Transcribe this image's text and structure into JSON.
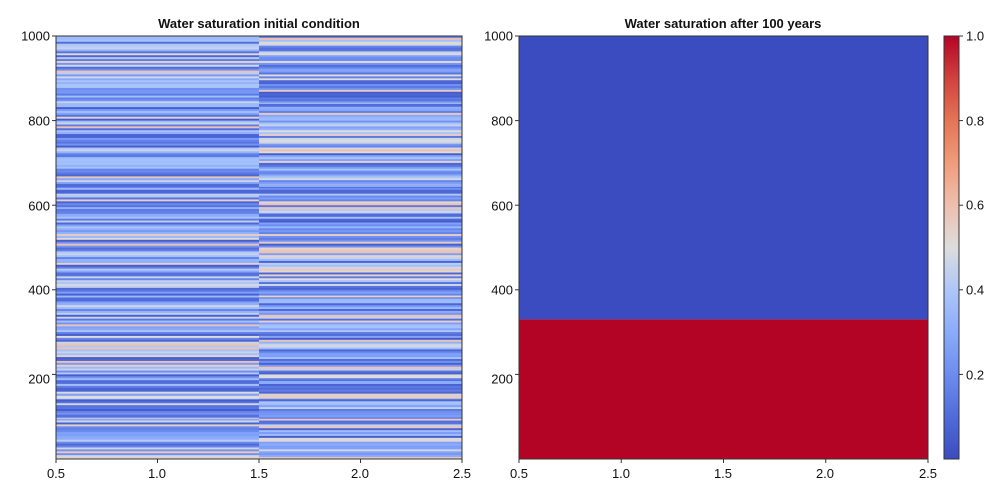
{
  "chart_data": [
    {
      "type": "heatmap",
      "title": "Water saturation initial condition",
      "xlabel": "",
      "ylabel": "",
      "xlim": [
        0.5,
        2.5
      ],
      "ylim": [
        0,
        1000
      ],
      "xticks": [
        "0.5",
        "1.0",
        "1.5",
        "2.0",
        "2.5"
      ],
      "yticks": [
        "200",
        "400",
        "600",
        "800",
        "1000"
      ],
      "columns": 2,
      "description_of_values": "Thin horizontal layers; saturation roughly 0.05–0.6 varying with depth",
      "value_range": [
        0.05,
        0.6
      ],
      "sample_layers": [
        {
          "y": 100,
          "left": 0.12,
          "right": 0.25
        },
        {
          "y": 145,
          "left": 0.5,
          "right": 0.55
        },
        {
          "y": 180,
          "left": 0.1,
          "right": 0.3
        },
        {
          "y": 375,
          "left": 0.1,
          "right": 0.35
        },
        {
          "y": 575,
          "left": 0.3,
          "right": 0.1
        },
        {
          "y": 645,
          "left": 0.1,
          "right": 0.3
        },
        {
          "y": 835,
          "left": 0.35,
          "right": 0.1
        }
      ]
    },
    {
      "type": "heatmap",
      "title": "Water saturation after 100 years",
      "xlabel": "",
      "ylabel": "",
      "xlim": [
        0.5,
        2.5
      ],
      "ylim": [
        0,
        1000
      ],
      "xticks": [
        "0.5",
        "1.0",
        "1.5",
        "2.0",
        "2.5"
      ],
      "yticks": [
        "200",
        "400",
        "600",
        "800",
        "1000"
      ],
      "regions": [
        {
          "y_from": 0,
          "y_to": 330,
          "value": 1.0
        },
        {
          "y_from": 330,
          "y_to": 1000,
          "value": 0.0
        }
      ]
    }
  ],
  "colorbar": {
    "range": [
      0.0,
      1.0
    ],
    "ticks": [
      "0.2",
      "0.4",
      "0.6",
      "0.8",
      "1.0"
    ],
    "colormap": "coolwarm"
  },
  "colors": {
    "low": "#3b4cc0",
    "high": "#b40426",
    "axis": "#333333"
  }
}
